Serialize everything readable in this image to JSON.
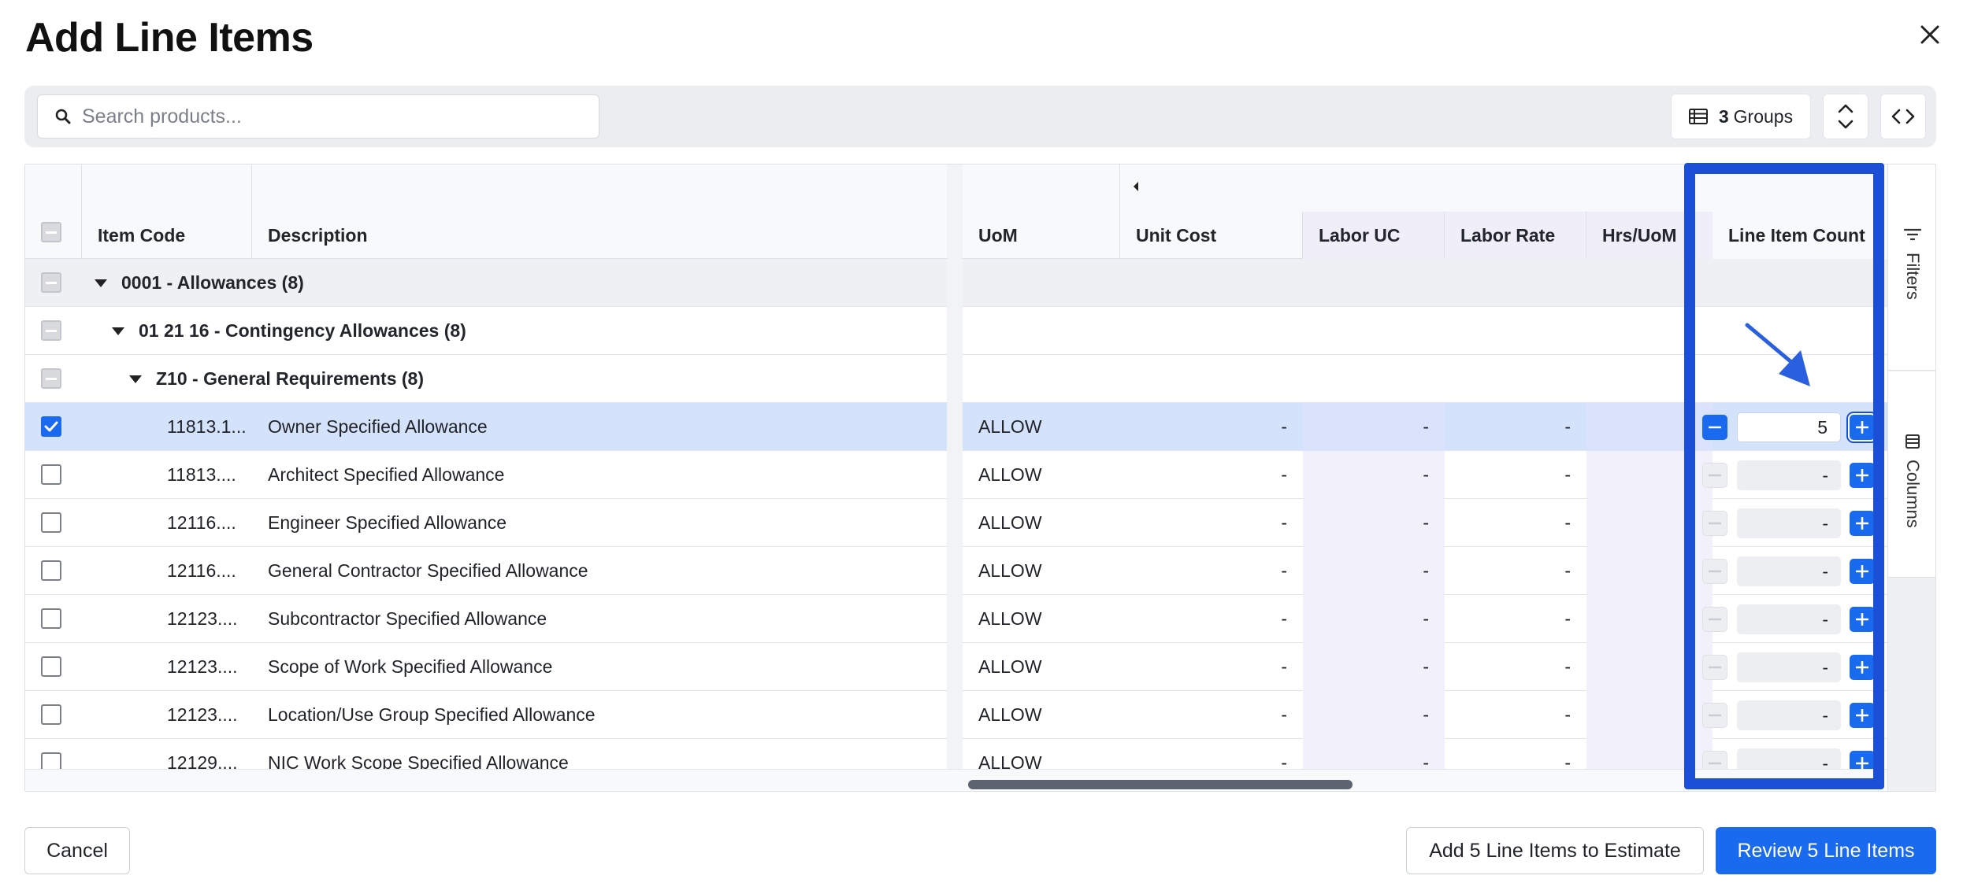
{
  "dialog": {
    "title": "Add Line Items"
  },
  "toolbar": {
    "search_placeholder": "Search products...",
    "groups_count": "3",
    "groups_label": "Groups"
  },
  "grid": {
    "headers": {
      "item_code": "Item Code",
      "description": "Description",
      "uom": "UoM",
      "unit_cost": "Unit Cost",
      "labor_uc": "Labor UC",
      "labor_rate": "Labor Rate",
      "hrs_uom": "Hrs/UoM",
      "line_item_count": "Line Item Count"
    },
    "groups": [
      "0001 - Allowances (8)",
      "01 21 16 - Contingency Allowances (8)",
      "Z10 - General Requirements (8)"
    ],
    "rows": [
      {
        "code": "11813.1...",
        "desc": "Owner Specified Allowance",
        "uom": "ALLOW",
        "unit_cost": "-",
        "labor_uc": "-",
        "labor_rate": "-",
        "count": "5",
        "selected": true
      },
      {
        "code": "11813....",
        "desc": "Architect Specified Allowance",
        "uom": "ALLOW",
        "unit_cost": "-",
        "labor_uc": "-",
        "labor_rate": "-",
        "count": "-",
        "selected": false
      },
      {
        "code": "12116....",
        "desc": "Engineer Specified Allowance",
        "uom": "ALLOW",
        "unit_cost": "-",
        "labor_uc": "-",
        "labor_rate": "-",
        "count": "-",
        "selected": false
      },
      {
        "code": "12116....",
        "desc": "General Contractor Specified Allowance",
        "uom": "ALLOW",
        "unit_cost": "-",
        "labor_uc": "-",
        "labor_rate": "-",
        "count": "-",
        "selected": false
      },
      {
        "code": "12123....",
        "desc": "Subcontractor Specified Allowance",
        "uom": "ALLOW",
        "unit_cost": "-",
        "labor_uc": "-",
        "labor_rate": "-",
        "count": "-",
        "selected": false
      },
      {
        "code": "12123....",
        "desc": "Scope of Work Specified Allowance",
        "uom": "ALLOW",
        "unit_cost": "-",
        "labor_uc": "-",
        "labor_rate": "-",
        "count": "-",
        "selected": false
      },
      {
        "code": "12123....",
        "desc": "Location/Use Group Specified Allowance",
        "uom": "ALLOW",
        "unit_cost": "-",
        "labor_uc": "-",
        "labor_rate": "-",
        "count": "-",
        "selected": false
      },
      {
        "code": "12129....",
        "desc": "NIC Work Scope Specified Allowance",
        "uom": "ALLOW",
        "unit_cost": "-",
        "labor_uc": "-",
        "labor_rate": "-",
        "count": "-",
        "selected": false
      }
    ]
  },
  "side_panel": {
    "filters_label": "Filters",
    "columns_label": "Columns"
  },
  "footer": {
    "cancel_label": "Cancel",
    "add_label": "Add 5 Line Items to Estimate",
    "review_label": "Review 5 Line Items"
  },
  "colors": {
    "accent": "#1a6af0",
    "highlight": "#1a4fd6",
    "selected_row": "#d4e2fb"
  }
}
